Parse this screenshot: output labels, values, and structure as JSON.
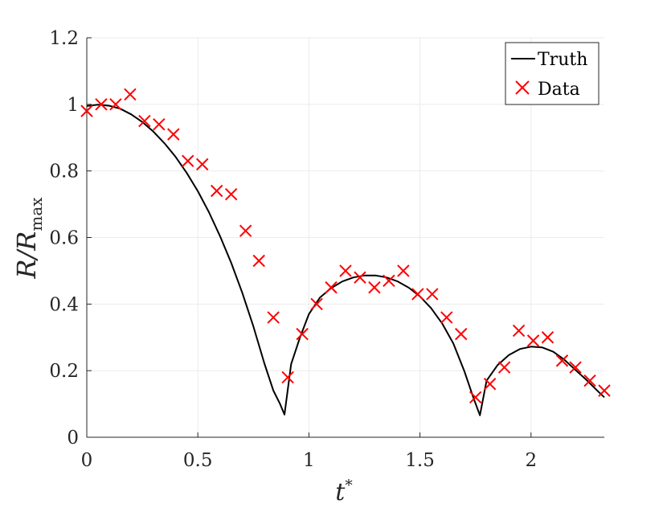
{
  "chart_data": {
    "type": "line",
    "title": "",
    "xlabel": {
      "base": "t",
      "sup": "*"
    },
    "ylabel": {
      "main": "R/R",
      "sub": "max"
    },
    "xlim": [
      0,
      2.33
    ],
    "ylim": [
      0,
      1.2
    ],
    "grid": true,
    "legend_position": "top-right",
    "x_ticks": [
      {
        "value": 0,
        "label": "0"
      },
      {
        "value": 0.5,
        "label": "0.5"
      },
      {
        "value": 1,
        "label": "1"
      },
      {
        "value": 1.5,
        "label": "1.5"
      },
      {
        "value": 2,
        "label": "2"
      }
    ],
    "y_ticks": [
      {
        "value": 0,
        "label": "0"
      },
      {
        "value": 0.2,
        "label": "0.2"
      },
      {
        "value": 0.4,
        "label": "0.4"
      },
      {
        "value": 0.6,
        "label": "0.6"
      },
      {
        "value": 0.8,
        "label": "0.8"
      },
      {
        "value": 1,
        "label": "1"
      },
      {
        "value": 1.2,
        "label": "1.2"
      }
    ],
    "series": [
      {
        "name": "Truth",
        "style": "line",
        "color": "#000000",
        "x": [
          0,
          0.05,
          0.1,
          0.15,
          0.2,
          0.25,
          0.3,
          0.35,
          0.4,
          0.45,
          0.5,
          0.55,
          0.6,
          0.65,
          0.7,
          0.75,
          0.8,
          0.84,
          0.87,
          0.89,
          0.92,
          0.96,
          1.0,
          1.05,
          1.1,
          1.15,
          1.2,
          1.25,
          1.3,
          1.35,
          1.4,
          1.45,
          1.5,
          1.55,
          1.6,
          1.65,
          1.7,
          1.74,
          1.77,
          1.8,
          1.85,
          1.9,
          1.95,
          2.0,
          2.05,
          2.1,
          2.15,
          2.2,
          2.25,
          2.3,
          2.33
        ],
        "y": [
          0.995,
          0.999,
          0.996,
          0.987,
          0.97,
          0.947,
          0.918,
          0.883,
          0.842,
          0.794,
          0.739,
          0.676,
          0.604,
          0.524,
          0.434,
          0.333,
          0.221,
          0.14,
          0.1,
          0.068,
          0.22,
          0.3,
          0.37,
          0.42,
          0.448,
          0.468,
          0.48,
          0.486,
          0.486,
          0.48,
          0.468,
          0.449,
          0.423,
          0.388,
          0.342,
          0.282,
          0.198,
          0.12,
          0.066,
          0.17,
          0.217,
          0.247,
          0.265,
          0.272,
          0.27,
          0.257,
          0.233,
          0.202,
          0.172,
          0.139,
          0.12
        ]
      },
      {
        "name": "Data",
        "style": "markers",
        "marker": "x",
        "color": "#ff0000",
        "x": [
          0.0,
          0.065,
          0.13,
          0.195,
          0.26,
          0.325,
          0.39,
          0.455,
          0.52,
          0.585,
          0.65,
          0.715,
          0.775,
          0.84,
          0.905,
          0.97,
          1.035,
          1.1,
          1.165,
          1.23,
          1.295,
          1.36,
          1.425,
          1.49,
          1.555,
          1.62,
          1.685,
          1.75,
          1.815,
          1.88,
          1.945,
          2.01,
          2.075,
          2.14,
          2.2,
          2.265,
          2.33
        ],
        "y": [
          0.98,
          1.0,
          1.0,
          1.03,
          0.95,
          0.94,
          0.91,
          0.83,
          0.82,
          0.74,
          0.73,
          0.62,
          0.53,
          0.36,
          0.18,
          0.31,
          0.4,
          0.45,
          0.5,
          0.48,
          0.45,
          0.47,
          0.5,
          0.43,
          0.43,
          0.36,
          0.31,
          0.12,
          0.16,
          0.21,
          0.32,
          0.29,
          0.3,
          0.23,
          0.21,
          0.17,
          0.14
        ]
      }
    ]
  }
}
